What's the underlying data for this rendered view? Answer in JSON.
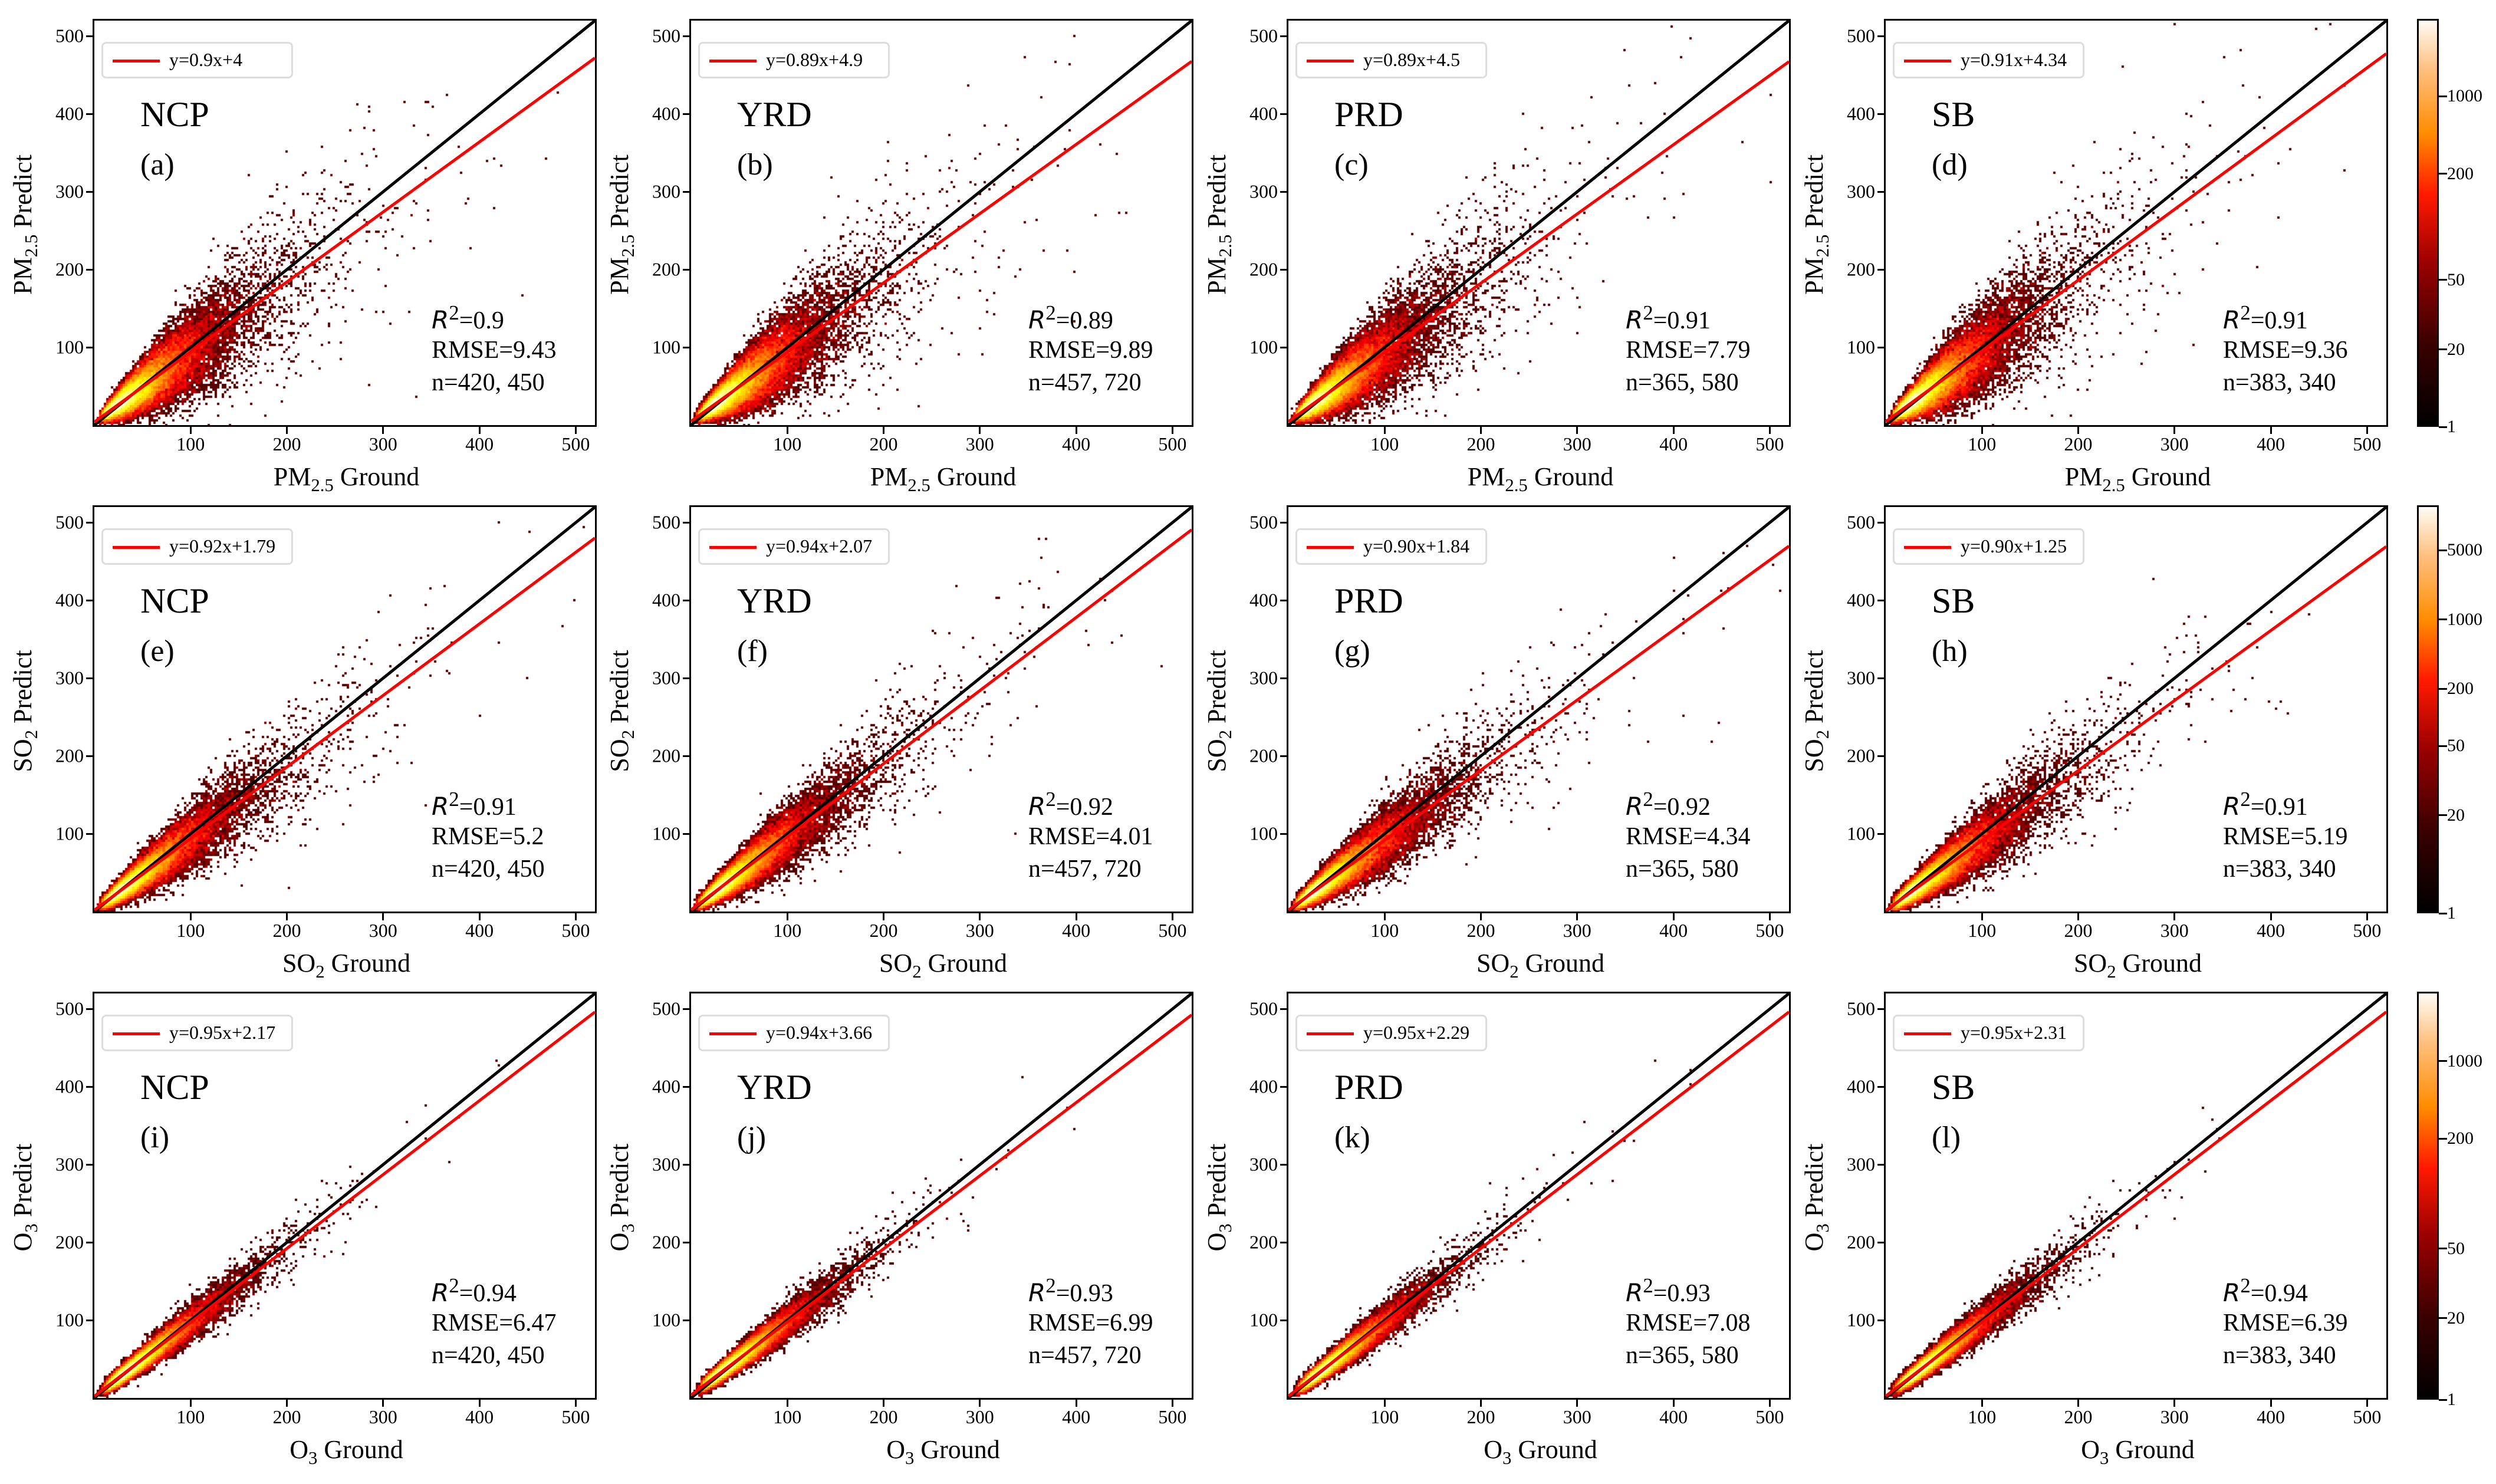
{
  "chart_data": {
    "type": "heatmap",
    "subtype": "density-scatter-grid",
    "xlim": [
      0,
      520
    ],
    "ylim": [
      0,
      520
    ],
    "ticks": [
      100,
      200,
      300,
      400,
      500
    ],
    "line_colors": {
      "one_to_one": "#000000",
      "fit": "#ff0000"
    },
    "rows": [
      {
        "pollutant": "PM2.5",
        "xlabel_main": "PM",
        "xlabel_sub": "2.5",
        "xlabel_rest": " Ground",
        "ylabel_rest": " Predict",
        "colorbar_ticks": [
          "1",
          "20",
          "50",
          "200",
          "1000"
        ]
      },
      {
        "pollutant": "SO2",
        "xlabel_main": "SO",
        "xlabel_sub": "2",
        "xlabel_rest": " Ground",
        "ylabel_rest": " Predict",
        "colorbar_ticks": [
          "1",
          "20",
          "50",
          "200",
          "1000",
          "5000"
        ]
      },
      {
        "pollutant": "O3",
        "xlabel_main": "O",
        "xlabel_sub": "3",
        "xlabel_rest": " Ground",
        "ylabel_rest": " Predict",
        "colorbar_ticks": [
          "1",
          "20",
          "50",
          "200",
          "1000"
        ]
      }
    ],
    "panels": [
      {
        "region": "NCP",
        "label": "(a)",
        "legend": "y=0.9x+4",
        "slope": 0.9,
        "intercept": 4,
        "r2": "=0.9",
        "rmse": "RMSE=9.43",
        "n": "n=420, 450"
      },
      {
        "region": "YRD",
        "label": "(b)",
        "legend": "y=0.89x+4.9",
        "slope": 0.89,
        "intercept": 4.9,
        "r2": "=0.89",
        "rmse": "RMSE=9.89",
        "n": "n=457, 720"
      },
      {
        "region": "PRD",
        "label": "(c)",
        "legend": "y=0.89x+4.5",
        "slope": 0.89,
        "intercept": 4.5,
        "r2": "=0.91",
        "rmse": "RMSE=7.79",
        "n": "n=365, 580"
      },
      {
        "region": "SB",
        "label": "(d)",
        "legend": "y=0.91x+4.34",
        "slope": 0.91,
        "intercept": 4.34,
        "r2": "=0.91",
        "rmse": "RMSE=9.36",
        "n": "n=383, 340"
      },
      {
        "region": "NCP",
        "label": "(e)",
        "legend": "y=0.92x+1.79",
        "slope": 0.92,
        "intercept": 1.79,
        "r2": "=0.91",
        "rmse": "RMSE=5.2",
        "n": "n=420, 450"
      },
      {
        "region": "YRD",
        "label": "(f)",
        "legend": "y=0.94x+2.07",
        "slope": 0.94,
        "intercept": 2.07,
        "r2": "=0.92",
        "rmse": "RMSE=4.01",
        "n": "n=457, 720"
      },
      {
        "region": "PRD",
        "label": "(g)",
        "legend": "y=0.90x+1.84",
        "slope": 0.9,
        "intercept": 1.84,
        "r2": "=0.92",
        "rmse": "RMSE=4.34",
        "n": "n=365, 580"
      },
      {
        "region": "SB",
        "label": "(h)",
        "legend": "y=0.90x+1.25",
        "slope": 0.9,
        "intercept": 1.25,
        "r2": "=0.91",
        "rmse": "RMSE=5.19",
        "n": "n=383, 340"
      },
      {
        "region": "NCP",
        "label": "(i)",
        "legend": "y=0.95x+2.17",
        "slope": 0.95,
        "intercept": 2.17,
        "r2": "=0.94",
        "rmse": "RMSE=6.47",
        "n": "n=420, 450"
      },
      {
        "region": "YRD",
        "label": "(j)",
        "legend": "y=0.94x+3.66",
        "slope": 0.94,
        "intercept": 3.66,
        "r2": "=0.93",
        "rmse": "RMSE=6.99",
        "n": "n=457, 720"
      },
      {
        "region": "PRD",
        "label": "(k)",
        "legend": "y=0.95x+2.29",
        "slope": 0.95,
        "intercept": 2.29,
        "r2": "=0.93",
        "rmse": "RMSE=7.08",
        "n": "n=365, 580"
      },
      {
        "region": "SB",
        "label": "(l)",
        "legend": "y=0.95x+2.31",
        "slope": 0.95,
        "intercept": 2.31,
        "r2": "=0.94",
        "rmse": "RMSE=6.39",
        "n": "n=383, 340"
      }
    ],
    "r2_symbol": "R",
    "r2_sup": "2"
  }
}
